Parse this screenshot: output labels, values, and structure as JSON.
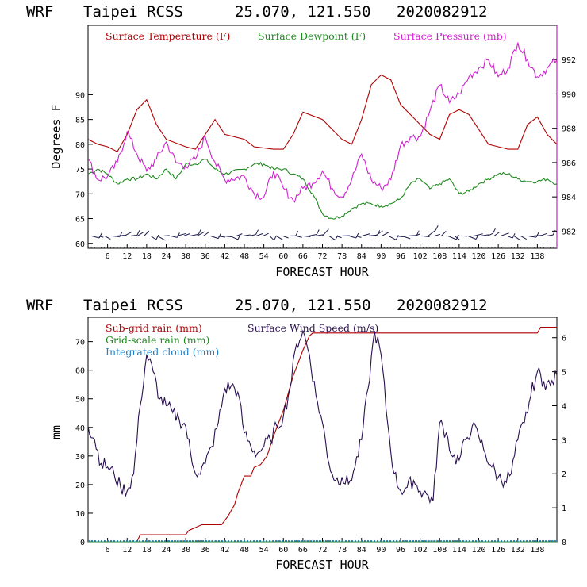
{
  "app": {
    "model": "WRF",
    "station": "Taipei RCSS",
    "coords": "25.070, 121.550",
    "init": "2020082912"
  },
  "top_chart": {
    "title_parts": [
      "WRF",
      "Taipei RCSS",
      "25.070, 121.550",
      "2020082912"
    ],
    "xlabel": "FORECAST HOUR",
    "ylabel": "Degrees F",
    "xlim": [
      0,
      144
    ],
    "ylim_left": [
      59,
      104
    ],
    "ylim_right": [
      981,
      994
    ],
    "xticks": [
      "6",
      "12",
      "18",
      "24",
      "30",
      "36",
      "42",
      "48",
      "54",
      "60",
      "66",
      "72",
      "78",
      "84",
      "90",
      "96",
      "102",
      "108",
      "114",
      "120",
      "126",
      "132",
      "138"
    ],
    "yticks_left": [
      "60",
      "65",
      "70",
      "75",
      "80",
      "85",
      "90"
    ],
    "yticks_right": [
      "982",
      "984",
      "986",
      "988",
      "990",
      "992"
    ],
    "legend": [
      "Surface Temperature (F)",
      "Surface Dewpoint (F)",
      "Surface Pressure (mb)"
    ],
    "colors": {
      "temp": "#b00000",
      "dew": "#1f8a1f",
      "pres": "#d020d0",
      "wind": "#1a1a4a"
    }
  },
  "bottom_chart": {
    "title_parts": [
      "WRF",
      "Taipei RCSS",
      "25.070, 121.550",
      "2020082912"
    ],
    "xlabel": "FORECAST HOUR",
    "ylabel": "mm",
    "xlim": [
      0,
      144
    ],
    "ylim_left": [
      0,
      78.5
    ],
    "ylim_right": [
      0,
      6.6
    ],
    "xticks": [
      "6",
      "12",
      "18",
      "24",
      "30",
      "36",
      "42",
      "48",
      "54",
      "60",
      "66",
      "72",
      "78",
      "84",
      "90",
      "96",
      "102",
      "108",
      "114",
      "120",
      "126",
      "132",
      "138"
    ],
    "yticks_left": [
      "0",
      "10",
      "20",
      "30",
      "40",
      "50",
      "60",
      "70"
    ],
    "yticks_right": [
      "0",
      "1",
      "2",
      "3",
      "4",
      "5",
      "6"
    ],
    "legend": [
      "Sub-grid rain (mm)",
      "Grid-scale rain (mm)",
      "Integrated cloud (mm)",
      "Surface Wind Speed (m/s)"
    ],
    "colors": {
      "subgrid": "#b00000",
      "grid": "#1f8a1f",
      "cloud": "#1e7ec8",
      "wind": "#2a1050"
    }
  },
  "chart_data": [
    {
      "type": "line",
      "title": "WRF Taipei RCSS 25.070, 121.550 2020082912",
      "xlabel": "FORECAST HOUR",
      "ylabel": "Degrees F",
      "series": [
        {
          "name": "Surface Temperature (F)",
          "axis": "left",
          "points": [
            [
              0,
              81
            ],
            [
              3,
              80
            ],
            [
              6,
              79.5
            ],
            [
              9,
              78.5
            ],
            [
              12,
              82
            ],
            [
              15,
              87
            ],
            [
              18,
              89
            ],
            [
              21,
              84
            ],
            [
              24,
              81
            ],
            [
              30,
              79.5
            ],
            [
              33,
              79
            ],
            [
              36,
              82
            ],
            [
              39,
              85
            ],
            [
              42,
              82
            ],
            [
              48,
              81
            ],
            [
              51,
              79.5
            ],
            [
              57,
              79
            ],
            [
              60,
              79
            ],
            [
              63,
              82
            ],
            [
              66,
              86.5
            ],
            [
              72,
              85
            ],
            [
              78,
              81
            ],
            [
              81,
              80
            ],
            [
              84,
              85
            ],
            [
              87,
              92
            ],
            [
              90,
              94
            ],
            [
              93,
              93
            ],
            [
              96,
              88
            ],
            [
              99,
              86
            ],
            [
              102,
              84
            ],
            [
              105,
              82
            ],
            [
              108,
              81
            ],
            [
              111,
              86
            ],
            [
              114,
              87
            ],
            [
              117,
              86
            ],
            [
              120,
              83
            ],
            [
              123,
              80
            ],
            [
              126,
              79.5
            ],
            [
              129,
              79
            ],
            [
              132,
              79
            ],
            [
              135,
              84
            ],
            [
              138,
              85.5
            ],
            [
              141,
              82
            ],
            [
              144,
              80
            ]
          ]
        },
        {
          "name": "Surface Dewpoint (F)",
          "axis": "left",
          "points": [
            [
              0,
              74
            ],
            [
              3,
              75
            ],
            [
              6,
              74
            ],
            [
              9,
              72
            ],
            [
              12,
              73
            ],
            [
              15,
              73
            ],
            [
              18,
              74
            ],
            [
              21,
              73
            ],
            [
              24,
              75
            ],
            [
              27,
              73
            ],
            [
              30,
              76
            ],
            [
              33,
              76
            ],
            [
              36,
              77
            ],
            [
              39,
              75
            ],
            [
              42,
              74
            ],
            [
              48,
              75
            ],
            [
              51,
              76
            ],
            [
              54,
              76
            ],
            [
              57,
              75
            ],
            [
              60,
              75
            ],
            [
              63,
              74
            ],
            [
              66,
              73
            ],
            [
              69,
              70
            ],
            [
              72,
              66
            ],
            [
              75,
              65
            ],
            [
              78,
              65.5
            ],
            [
              81,
              67
            ],
            [
              84,
              68
            ],
            [
              87,
              68
            ],
            [
              90,
              67.5
            ],
            [
              93,
              68
            ],
            [
              96,
              69
            ],
            [
              99,
              72
            ],
            [
              102,
              73
            ],
            [
              105,
              71
            ],
            [
              108,
              72
            ],
            [
              111,
              73
            ],
            [
              114,
              70
            ],
            [
              117,
              70.5
            ],
            [
              120,
              72
            ],
            [
              123,
              73
            ],
            [
              126,
              74
            ],
            [
              129,
              74
            ],
            [
              132,
              73
            ],
            [
              135,
              72.5
            ],
            [
              138,
              72.5
            ],
            [
              141,
              73
            ],
            [
              144,
              72
            ]
          ]
        },
        {
          "name": "Surface Pressure (mb)",
          "axis": "right",
          "points": [
            [
              0,
              986.2
            ],
            [
              3,
              985
            ],
            [
              6,
              985.2
            ],
            [
              9,
              986
            ],
            [
              12,
              987.8
            ],
            [
              15,
              986.5
            ],
            [
              18,
              985.5
            ],
            [
              21,
              986.2
            ],
            [
              24,
              987.2
            ],
            [
              27,
              986
            ],
            [
              30,
              985.8
            ],
            [
              33,
              986.2
            ],
            [
              36,
              987.5
            ],
            [
              39,
              986
            ],
            [
              42,
              985
            ],
            [
              48,
              985.2
            ],
            [
              51,
              984.2
            ],
            [
              54,
              984
            ],
            [
              57,
              985.5
            ],
            [
              60,
              984.5
            ],
            [
              63,
              983.8
            ],
            [
              66,
              984.5
            ],
            [
              69,
              984.8
            ],
            [
              72,
              985.5
            ],
            [
              75,
              984.5
            ],
            [
              78,
              984
            ],
            [
              81,
              985
            ],
            [
              84,
              986.5
            ],
            [
              87,
              985
            ],
            [
              90,
              984.5
            ],
            [
              93,
              985
            ],
            [
              96,
              987
            ],
            [
              99,
              987.5
            ],
            [
              102,
              987.5
            ],
            [
              105,
              989
            ],
            [
              108,
              990.5
            ],
            [
              111,
              989.5
            ],
            [
              114,
              990
            ],
            [
              117,
              991
            ],
            [
              120,
              991.5
            ],
            [
              123,
              992
            ],
            [
              126,
              991
            ],
            [
              129,
              991.5
            ],
            [
              132,
              993
            ],
            [
              135,
              992
            ],
            [
              138,
              991
            ],
            [
              141,
              991.5
            ],
            [
              144,
              992
            ]
          ]
        }
      ],
      "wind_barbs": {
        "name": "Surface Wind Barbs",
        "y_level": 61.5,
        "count": 70
      },
      "xlim": [
        0,
        144
      ],
      "ylim_left": [
        59,
        104
      ],
      "ylim_right": [
        981,
        994
      ]
    },
    {
      "type": "line",
      "title": "WRF Taipei RCSS 25.070, 121.550 2020082912",
      "xlabel": "FORECAST HOUR",
      "ylabel": "mm",
      "series": [
        {
          "name": "Sub-grid rain (mm)",
          "axis": "left",
          "points": [
            [
              0,
              0
            ],
            [
              15,
              0
            ],
            [
              16,
              2.5
            ],
            [
              30,
              2.5
            ],
            [
              31,
              4
            ],
            [
              33,
              5
            ],
            [
              35,
              6
            ],
            [
              41,
              6
            ],
            [
              43,
              9
            ],
            [
              45,
              13
            ],
            [
              46,
              17
            ],
            [
              47,
              20
            ],
            [
              48,
              23
            ],
            [
              50,
              23
            ],
            [
              51,
              26
            ],
            [
              53,
              27
            ],
            [
              55,
              30
            ],
            [
              57,
              37
            ],
            [
              60,
              46
            ],
            [
              63,
              58
            ],
            [
              66,
              67
            ],
            [
              68,
              72
            ],
            [
              69,
              73
            ],
            [
              138,
              73
            ],
            [
              139,
              75
            ],
            [
              144,
              75
            ]
          ]
        },
        {
          "name": "Grid-scale rain (mm)",
          "axis": "left",
          "points": [
            [
              0,
              0
            ],
            [
              144,
              0
            ]
          ]
        },
        {
          "name": "Integrated cloud (mm)",
          "axis": "left",
          "points": [
            [
              0,
              0.3
            ],
            [
              144,
              0.3
            ]
          ]
        },
        {
          "name": "Surface Wind Speed (m/s)",
          "axis": "right",
          "points": [
            [
              0,
              3.4
            ],
            [
              2,
              3
            ],
            [
              4,
              2.3
            ],
            [
              6,
              2.2
            ],
            [
              8,
              2
            ],
            [
              10,
              1.6
            ],
            [
              12,
              1.5
            ],
            [
              14,
              2
            ],
            [
              16,
              4
            ],
            [
              18,
              5.5
            ],
            [
              20,
              5
            ],
            [
              22,
              4.2
            ],
            [
              24,
              4
            ],
            [
              26,
              3.8
            ],
            [
              28,
              3.6
            ],
            [
              30,
              3.4
            ],
            [
              32,
              2.3
            ],
            [
              34,
              2
            ],
            [
              36,
              2.3
            ],
            [
              38,
              2.8
            ],
            [
              40,
              3.5
            ],
            [
              42,
              4.5
            ],
            [
              44,
              4.6
            ],
            [
              46,
              4.4
            ],
            [
              48,
              3.2
            ],
            [
              50,
              2.8
            ],
            [
              52,
              2.6
            ],
            [
              54,
              2.8
            ],
            [
              56,
              3
            ],
            [
              58,
              3.4
            ],
            [
              60,
              3.7
            ],
            [
              62,
              4.5
            ],
            [
              64,
              5.8
            ],
            [
              66,
              6.2
            ],
            [
              68,
              5.5
            ],
            [
              70,
              4.3
            ],
            [
              72,
              3.5
            ],
            [
              74,
              2.3
            ],
            [
              76,
              1.8
            ],
            [
              78,
              1.9
            ],
            [
              80,
              1.7
            ],
            [
              82,
              2.2
            ],
            [
              84,
              3
            ],
            [
              86,
              4.5
            ],
            [
              88,
              6.2
            ],
            [
              90,
              5.5
            ],
            [
              92,
              3.5
            ],
            [
              94,
              2
            ],
            [
              96,
              1.5
            ],
            [
              98,
              1.6
            ],
            [
              100,
              1.8
            ],
            [
              102,
              1.5
            ],
            [
              104,
              1.4
            ],
            [
              106,
              1.2
            ],
            [
              108,
              3.5
            ],
            [
              110,
              3.2
            ],
            [
              112,
              2.5
            ],
            [
              114,
              2.4
            ],
            [
              116,
              3
            ],
            [
              118,
              3.4
            ],
            [
              120,
              3.1
            ],
            [
              122,
              2.6
            ],
            [
              124,
              2.2
            ],
            [
              126,
              1.9
            ],
            [
              128,
              1.8
            ],
            [
              130,
              2
            ],
            [
              132,
              3
            ],
            [
              134,
              3.5
            ],
            [
              136,
              4.3
            ],
            [
              138,
              5
            ],
            [
              140,
              4.7
            ],
            [
              142,
              4.6
            ],
            [
              144,
              4.9
            ]
          ]
        }
      ],
      "xlim": [
        0,
        144
      ],
      "ylim_left": [
        0,
        78.5
      ],
      "ylim_right": [
        0,
        6.6
      ]
    }
  ]
}
